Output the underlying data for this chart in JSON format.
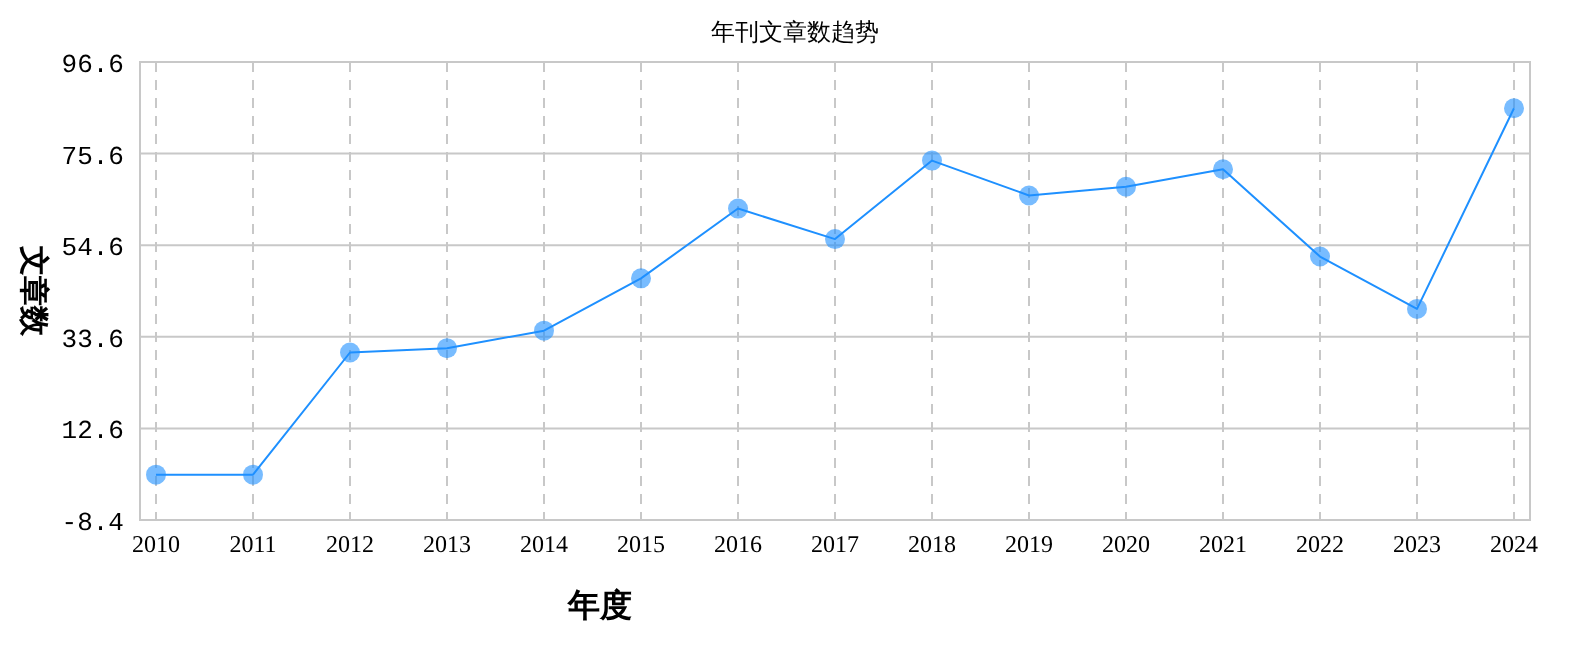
{
  "chart_data": {
    "type": "line",
    "title": "年刊文章数趋势",
    "xlabel": "年度",
    "ylabel": "文章数",
    "categories": [
      "2010",
      "2011",
      "2012",
      "2013",
      "2014",
      "2015",
      "2016",
      "2017",
      "2018",
      "2019",
      "2020",
      "2021",
      "2022",
      "2023",
      "2024"
    ],
    "series": [
      {
        "color": "#1e90ff",
        "values": [
          2,
          2,
          30,
          31,
          35,
          47,
          63,
          56,
          74,
          66,
          68,
          72,
          52,
          40,
          86
        ]
      }
    ],
    "ylim": [
      -8.4,
      96.6
    ],
    "yticks": [
      -8.4,
      12.6,
      33.6,
      54.6,
      75.6,
      96.6
    ],
    "grid": true,
    "marker": "circle",
    "line_style": "solid"
  }
}
